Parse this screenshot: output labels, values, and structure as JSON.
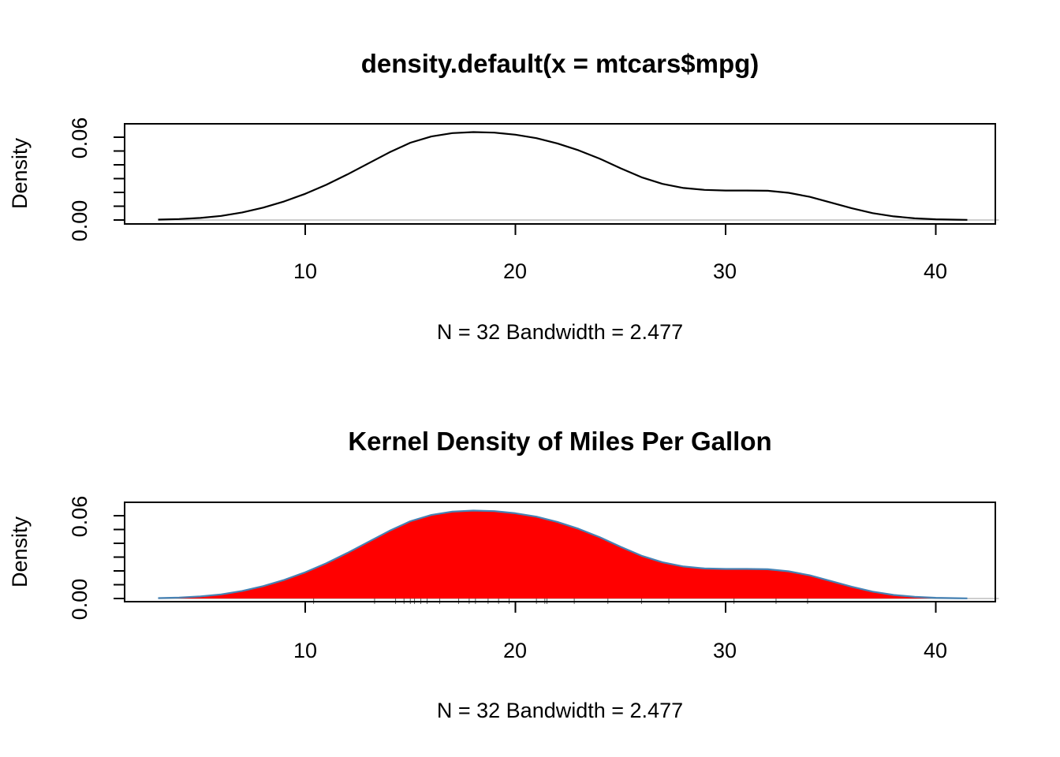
{
  "chart_data": [
    {
      "type": "area",
      "title": "density.default(x = mtcars$mpg)",
      "xlabel": "N = 32   Bandwidth = 2.477",
      "ylabel": "Density",
      "xlim": [
        2,
        43
      ],
      "ylim": [
        0,
        0.07
      ],
      "x_ticks": [
        "10",
        "20",
        "30",
        "40"
      ],
      "y_ticks": [
        "0.00",
        "0.06"
      ],
      "fill": "none",
      "line_color": "#000000",
      "rug": false,
      "x": [
        3.0,
        4.0,
        5.0,
        6.0,
        7.0,
        8.0,
        9.0,
        10.0,
        11.0,
        12.0,
        13.0,
        14.0,
        15.0,
        16.0,
        17.0,
        18.0,
        19.0,
        20.0,
        21.0,
        22.0,
        23.0,
        24.0,
        25.0,
        26.0,
        27.0,
        28.0,
        29.0,
        30.0,
        31.0,
        32.0,
        33.0,
        34.0,
        35.0,
        36.0,
        37.0,
        38.0,
        39.0,
        40.0,
        41.0,
        41.5
      ],
      "y": [
        0.0003,
        0.0007,
        0.0015,
        0.003,
        0.0055,
        0.009,
        0.0135,
        0.019,
        0.0255,
        0.033,
        0.041,
        0.049,
        0.056,
        0.0605,
        0.063,
        0.0637,
        0.0633,
        0.0618,
        0.0593,
        0.0555,
        0.0505,
        0.0445,
        0.0375,
        0.031,
        0.0262,
        0.0232,
        0.0218,
        0.0214,
        0.0214,
        0.0212,
        0.0197,
        0.0168,
        0.0127,
        0.0085,
        0.005,
        0.0026,
        0.0012,
        0.0005,
        0.0002,
        0.0001
      ]
    },
    {
      "type": "area",
      "title": "Kernel Density of Miles Per Gallon",
      "xlabel": "N = 32   Bandwidth = 2.477",
      "ylabel": "Density",
      "xlim": [
        2,
        43
      ],
      "ylim": [
        0,
        0.07
      ],
      "x_ticks": [
        "10",
        "20",
        "30",
        "40"
      ],
      "y_ticks": [
        "0.00",
        "0.06"
      ],
      "fill": "#ff0000",
      "line_color": "#4682b4",
      "rug": true,
      "rug_values": [
        10.4,
        13.3,
        14.3,
        14.7,
        15.0,
        15.2,
        15.5,
        15.8,
        16.4,
        17.3,
        17.8,
        18.1,
        18.7,
        19.2,
        19.7,
        21.0,
        21.4,
        21.5,
        22.8,
        24.4,
        26.0,
        27.3,
        30.4,
        32.4,
        33.9
      ],
      "x": [
        3.0,
        4.0,
        5.0,
        6.0,
        7.0,
        8.0,
        9.0,
        10.0,
        11.0,
        12.0,
        13.0,
        14.0,
        15.0,
        16.0,
        17.0,
        18.0,
        19.0,
        20.0,
        21.0,
        22.0,
        23.0,
        24.0,
        25.0,
        26.0,
        27.0,
        28.0,
        29.0,
        30.0,
        31.0,
        32.0,
        33.0,
        34.0,
        35.0,
        36.0,
        37.0,
        38.0,
        39.0,
        40.0,
        41.0,
        41.5
      ],
      "y": [
        0.0003,
        0.0007,
        0.0015,
        0.003,
        0.0055,
        0.009,
        0.0135,
        0.019,
        0.0255,
        0.033,
        0.041,
        0.049,
        0.056,
        0.0605,
        0.063,
        0.0637,
        0.0633,
        0.0618,
        0.0593,
        0.0555,
        0.0505,
        0.0445,
        0.0375,
        0.031,
        0.0262,
        0.0232,
        0.0218,
        0.0214,
        0.0214,
        0.0212,
        0.0197,
        0.0168,
        0.0127,
        0.0085,
        0.005,
        0.0026,
        0.0012,
        0.0005,
        0.0002,
        0.0001
      ]
    }
  ]
}
